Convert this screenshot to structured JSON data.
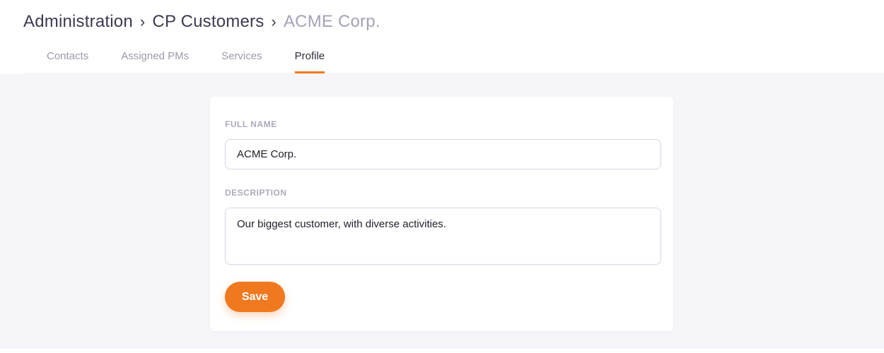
{
  "colors": {
    "accent_orange": "#F0781F",
    "breadcrumb_text": "#3B3A52",
    "breadcrumb_current": "#A3A2B8",
    "tab_inactive": "#9B9AAE",
    "tab_active": "#2E2D3A",
    "page_background": "#F6F6FA",
    "card_background": "#FFFFFF",
    "input_border": "#D6D5E4",
    "label_text": "#ABAABC"
  },
  "breadcrumb": {
    "separator": "›",
    "items": [
      {
        "label": "Administration"
      },
      {
        "label": "CP Customers"
      },
      {
        "label": "ACME Corp."
      }
    ]
  },
  "tabs": {
    "items": [
      {
        "label": "Contacts"
      },
      {
        "label": "Assigned PMs"
      },
      {
        "label": "Services"
      },
      {
        "label": "Profile"
      }
    ],
    "active": "Profile"
  },
  "profile_form": {
    "full_name": {
      "label": "FULL NAME",
      "value": "ACME Corp."
    },
    "description": {
      "label": "DESCRIPTION",
      "value": "Our biggest customer, with diverse activities."
    },
    "save_label": "Save"
  }
}
